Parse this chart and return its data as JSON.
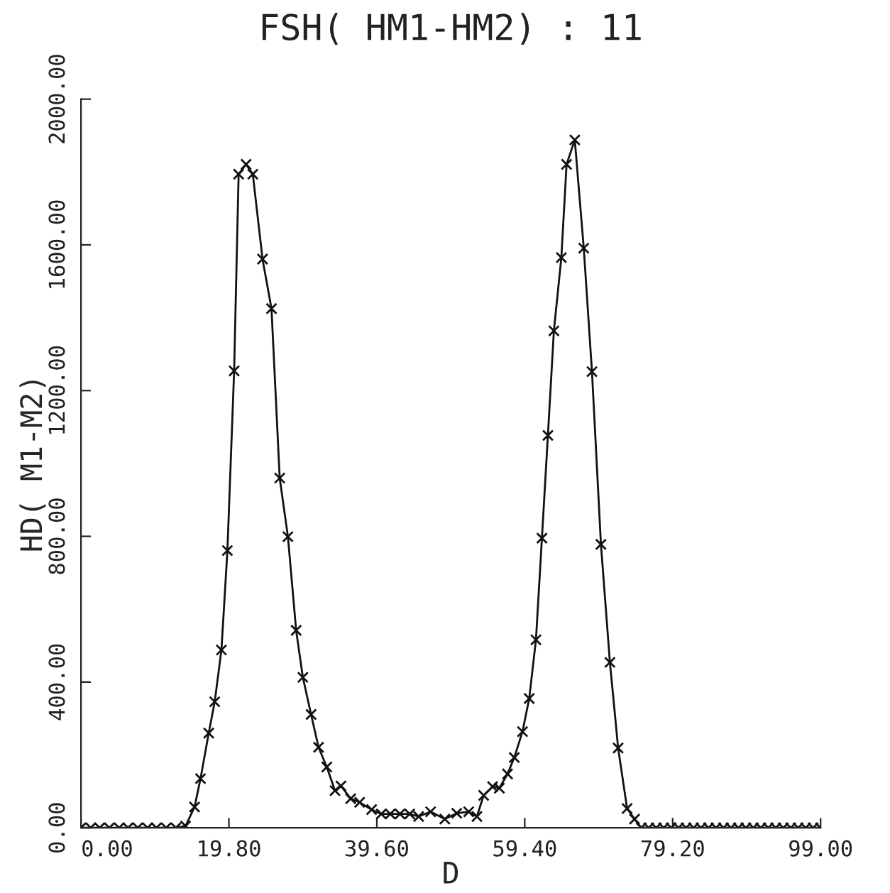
{
  "chart_data": {
    "type": "line",
    "title": "FSH( HM1-HM2) : 11",
    "xlabel": "D",
    "ylabel": "HD( M1-M2)",
    "x": [
      0,
      1.3,
      2.5,
      3.8,
      5.1,
      6.3,
      7.6,
      8.9,
      10.1,
      11.4,
      12.7,
      14.0,
      15.2,
      16.0,
      17.1,
      17.9,
      18.8,
      19.6,
      20.5,
      21.1,
      22.1,
      23.0,
      24.3,
      25.5,
      26.6,
      27.7,
      28.8,
      29.7,
      30.8,
      31.8,
      32.9,
      34.0,
      34.8,
      36.1,
      37.3,
      38.9,
      40.2,
      41.4,
      42.7,
      44.0,
      45.2,
      46.8,
      48.7,
      50.3,
      51.9,
      53.0,
      53.9,
      55.1,
      56.0,
      57.1,
      58.0,
      59.1,
      60.0,
      60.9,
      61.7,
      62.5,
      63.3,
      64.3,
      65.0,
      66.1,
      67.3,
      68.4,
      69.6,
      70.8,
      71.9,
      73.1,
      74.1,
      75,
      76,
      77,
      78,
      79,
      80,
      81,
      82,
      83,
      84,
      85,
      86,
      87,
      88,
      89,
      90,
      91,
      92,
      93,
      94,
      95,
      96,
      97,
      98,
      99
    ],
    "series": [
      {
        "color": "#111111",
        "values": [
          0,
          0,
          0,
          0,
          0,
          0,
          0,
          0,
          0,
          0,
          0,
          5,
          57,
          135,
          260,
          346,
          488,
          761,
          1254,
          1794,
          1821,
          1794,
          1561,
          1425,
          960,
          799,
          542,
          413,
          311,
          221,
          167,
          102,
          115,
          80,
          70,
          50,
          38,
          38,
          38,
          38,
          31,
          44,
          24,
          40,
          44,
          31,
          89,
          113,
          109,
          148,
          193,
          264,
          355,
          516,
          795,
          1077,
          1364,
          1565,
          1821,
          1888,
          1591,
          1252,
          778,
          454,
          219,
          53,
          24,
          0,
          0,
          0,
          0,
          0,
          0,
          0,
          0,
          0,
          0,
          0,
          0,
          0,
          0,
          0,
          0,
          0,
          0,
          0,
          0,
          0,
          0,
          0,
          0,
          0
        ]
      }
    ],
    "xlim": [
      0,
      99
    ],
    "ylim": [
      0,
      2000
    ],
    "xticks": [
      {
        "value": 0,
        "label": "0.00"
      },
      {
        "value": 19.8,
        "label": "19.80"
      },
      {
        "value": 39.6,
        "label": "39.60"
      },
      {
        "value": 59.4,
        "label": "59.40"
      },
      {
        "value": 79.2,
        "label": "79.20"
      },
      {
        "value": 99,
        "label": "99.00"
      }
    ],
    "yticks": [
      {
        "value": 0,
        "label": "0.00"
      },
      {
        "value": 400,
        "label": "400.00"
      },
      {
        "value": 800,
        "label": "800.00"
      },
      {
        "value": 1200,
        "label": "1200.00"
      },
      {
        "value": 1600,
        "label": "1600.00"
      },
      {
        "value": 2000,
        "label": "2000.00"
      }
    ],
    "grid": false,
    "marker": "cross",
    "line_style": "solid"
  }
}
